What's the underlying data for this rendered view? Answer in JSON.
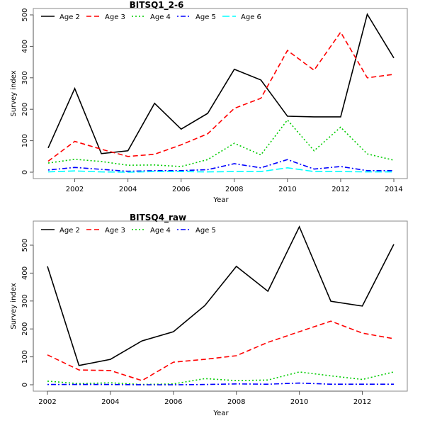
{
  "chart_data": [
    {
      "type": "line",
      "title": "BITSQ1_2-6",
      "xlabel": "Year",
      "ylabel": "Survey index",
      "xlim": [
        2001,
        2014
      ],
      "ylim": [
        0,
        500
      ],
      "x_ticks": [
        2002,
        2004,
        2006,
        2008,
        2010,
        2012,
        2014
      ],
      "y_ticks": [
        0,
        100,
        200,
        300,
        400,
        500
      ],
      "grid": false,
      "legend_position": "top",
      "x": [
        2001,
        2002,
        2003,
        2004,
        2005,
        2006,
        2007,
        2008,
        2009,
        2010,
        2011,
        2012,
        2013,
        2014
      ],
      "series": [
        {
          "name": "Age 2",
          "color": "#000000",
          "dash": "solid",
          "values": [
            77,
            266,
            59,
            68,
            219,
            137,
            187,
            327,
            293,
            178,
            176,
            176,
            502,
            363
          ]
        },
        {
          "name": "Age 3",
          "color": "#ff0000",
          "dash": "dashed",
          "values": [
            35,
            98,
            73,
            50,
            57,
            87,
            122,
            203,
            235,
            387,
            324,
            445,
            300,
            311
          ]
        },
        {
          "name": "Age 4",
          "color": "#00cc00",
          "dash": "dotted",
          "values": [
            29,
            41,
            34,
            22,
            23,
            18,
            40,
            92,
            55,
            166,
            68,
            143,
            58,
            38
          ]
        },
        {
          "name": "Age 5",
          "color": "#0000ff",
          "dash": "dotdash",
          "values": [
            7,
            15,
            9,
            3,
            5,
            5,
            8,
            27,
            14,
            40,
            10,
            18,
            5,
            5
          ]
        },
        {
          "name": "Age 6",
          "color": "#00ffff",
          "dash": "longdash",
          "values": [
            1,
            4,
            1,
            0,
            2,
            2,
            1,
            2,
            2,
            14,
            2,
            2,
            1,
            1
          ]
        }
      ]
    },
    {
      "type": "line",
      "title": "BITSQ4_raw",
      "xlabel": "Year",
      "ylabel": "Survey index",
      "xlim": [
        2002,
        2013
      ],
      "ylim": [
        0,
        566
      ],
      "x_ticks": [
        2002,
        2004,
        2006,
        2008,
        2010,
        2012
      ],
      "y_ticks": [
        0,
        100,
        200,
        300,
        400,
        500
      ],
      "grid": false,
      "legend_position": "top",
      "x": [
        2002,
        2003,
        2004,
        2005,
        2006,
        2007,
        2008,
        2009,
        2010,
        2011,
        2012,
        2013
      ],
      "series": [
        {
          "name": "Age 2",
          "color": "#000000",
          "dash": "solid",
          "values": [
            424,
            69,
            91,
            157,
            190,
            284,
            424,
            335,
            566,
            299,
            282,
            503
          ]
        },
        {
          "name": "Age 3",
          "color": "#ff0000",
          "dash": "dashed",
          "values": [
            107,
            53,
            51,
            15,
            81,
            91,
            104,
            152,
            190,
            228,
            185,
            165
          ]
        },
        {
          "name": "Age 4",
          "color": "#00cc00",
          "dash": "dotted",
          "values": [
            13,
            4,
            7,
            1,
            3,
            22,
            15,
            17,
            46,
            32,
            19,
            46
          ]
        },
        {
          "name": "Age 5",
          "color": "#0000ff",
          "dash": "dotdash",
          "values": [
            1,
            1,
            1,
            0,
            0,
            1,
            3,
            2,
            6,
            2,
            2,
            2
          ]
        }
      ]
    }
  ]
}
